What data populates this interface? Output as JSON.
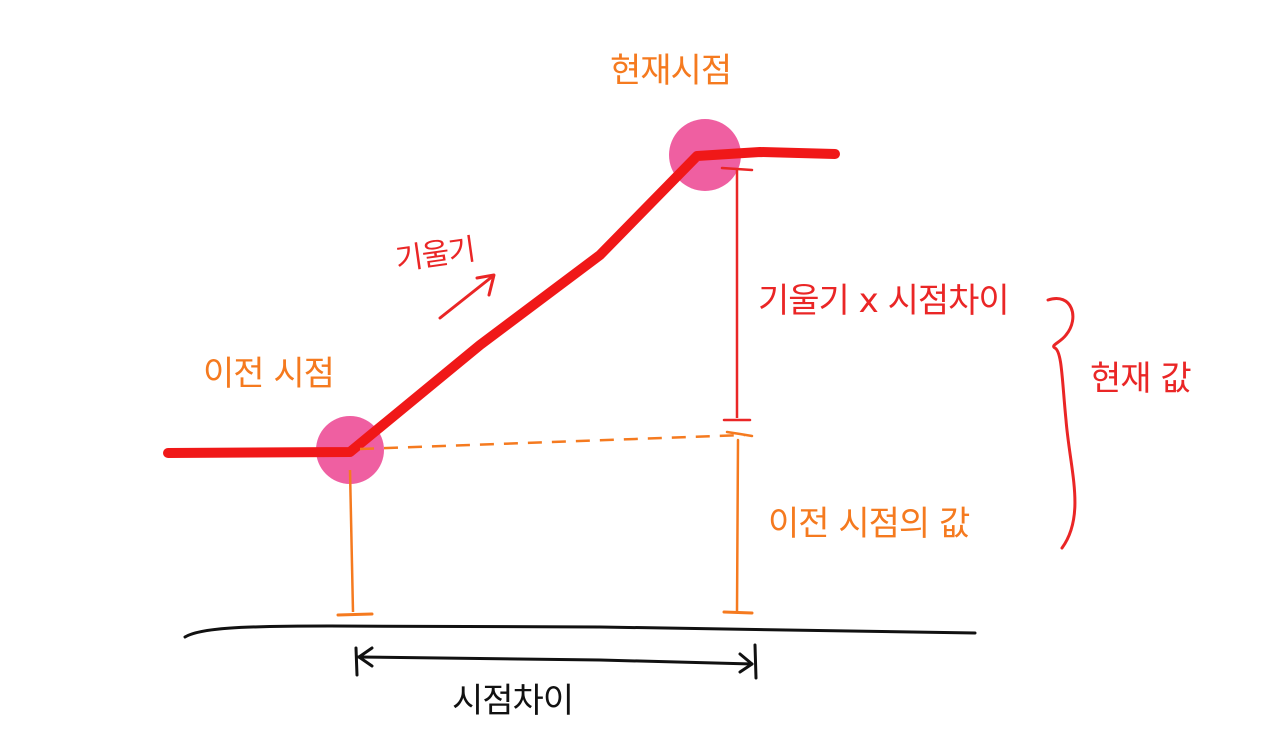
{
  "labels": {
    "previous_time": "이전 시점",
    "current_time": "현재시점",
    "slope": "기울기",
    "slope_times_diff": "기울기 x 시점차이",
    "current_value": "현재 값",
    "previous_value": "이전 시점의 값",
    "time_difference": "시점차이"
  },
  "colors": {
    "curve": "#f01818",
    "point": "#ec3c8c",
    "orange": "#f57a1f",
    "red_annotation": "#ea2626",
    "axis": "#111111"
  }
}
